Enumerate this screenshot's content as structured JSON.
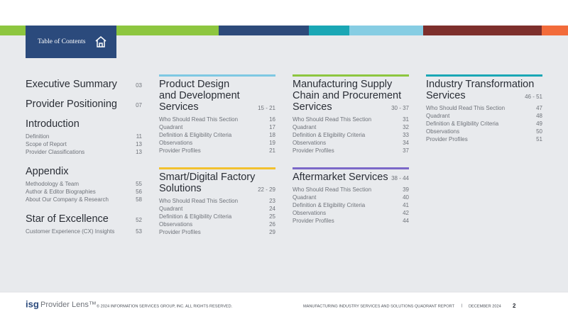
{
  "header": {
    "tab_label": "Table of Contents"
  },
  "left_sections": [
    {
      "title": "Executive Summary",
      "page": "03",
      "items": []
    },
    {
      "title": "Provider Positioning",
      "page": "07",
      "items": []
    },
    {
      "title": "Introduction",
      "items": [
        {
          "label": "Definition",
          "page": "11"
        },
        {
          "label": "Scope of Report",
          "page": "13"
        },
        {
          "label": "Provider Classifications",
          "page": "13"
        }
      ]
    },
    {
      "title": "Appendix",
      "items": [
        {
          "label": "Methodology & Team",
          "page": "55"
        },
        {
          "label": "Author & Editor Biographies",
          "page": "56"
        },
        {
          "label": "About Our Company & Research",
          "page": "58"
        }
      ]
    },
    {
      "title": "Star of Excellence",
      "page": "52",
      "items": [
        {
          "label": "Customer Experience (CX) Insights",
          "page": "53"
        }
      ]
    }
  ],
  "quadrant_sections": [
    {
      "title_lines": [
        "Product Design",
        "and Development",
        "Services"
      ],
      "pages": "15 - 21",
      "items": [
        {
          "label": "Who Should Read This Section",
          "page": "16"
        },
        {
          "label": "Quadrant",
          "page": "17"
        },
        {
          "label": "Definition & Eligibility Criteria",
          "page": "18"
        },
        {
          "label": "Observations",
          "page": "19"
        },
        {
          "label": "Provider Profiles",
          "page": "21"
        }
      ]
    },
    {
      "title_lines": [
        "Smart/Digital Factory",
        "Solutions"
      ],
      "pages": "22 - 29",
      "items": [
        {
          "label": "Who Should Read This Section",
          "page": "23"
        },
        {
          "label": "Quadrant",
          "page": "24"
        },
        {
          "label": "Definition & Eligibility Criteria",
          "page": "25"
        },
        {
          "label": "Observations",
          "page": "26"
        },
        {
          "label": "Provider Profiles",
          "page": "29"
        }
      ]
    },
    {
      "title_lines": [
        "Manufacturing Supply",
        "Chain and Procurement",
        "Services"
      ],
      "pages": "30 - 37",
      "items": [
        {
          "label": "Who Should Read This Section",
          "page": "31"
        },
        {
          "label": "Quadrant",
          "page": "32"
        },
        {
          "label": "Definition & Eligibility Criteria",
          "page": "33"
        },
        {
          "label": "Observations",
          "page": "34"
        },
        {
          "label": "Provider Profiles",
          "page": "37"
        }
      ]
    },
    {
      "title_lines": [
        "Aftermarket Services"
      ],
      "pages": "38 - 44",
      "items": [
        {
          "label": "Who Should Read This Section",
          "page": "39"
        },
        {
          "label": "Quadrant",
          "page": "40"
        },
        {
          "label": "Definition & Eligibility Criteria",
          "page": "41"
        },
        {
          "label": "Observations",
          "page": "42"
        },
        {
          "label": "Provider Profiles",
          "page": "44"
        }
      ]
    },
    {
      "title_lines": [
        "Industry Transformation",
        "Services"
      ],
      "pages": "46 - 51",
      "items": [
        {
          "label": "Who Should Read This Section",
          "page": "47"
        },
        {
          "label": "Quadrant",
          "page": "48"
        },
        {
          "label": "Definition & Eligibility Criteria",
          "page": "49"
        },
        {
          "label": "Observations",
          "page": "50"
        },
        {
          "label": "Provider Profiles",
          "page": "51"
        }
      ]
    }
  ],
  "footer": {
    "logo_brand": "isg",
    "logo_product": "Provider Lens™",
    "copyright": "© 2024 INFORMATION SERVICES GROUP, INC. ALL RIGHTS RESERVED.",
    "report_title": "MANUFACTURING INDUSTRY SERVICES AND SOLUTIONS QUADRANT REPORT",
    "separator": "|",
    "date": "DECEMBER 2024",
    "page_number": "2"
  }
}
